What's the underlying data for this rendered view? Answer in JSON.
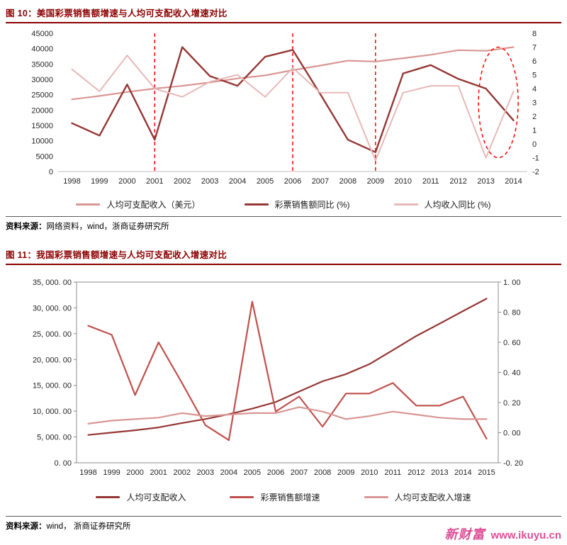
{
  "fig10": {
    "title": "图 10：美国彩票销售额增速与人均可支配收入增速对比",
    "source_label": "资料来源：",
    "source": "网络资料，wind，浙商证券研究所"
  },
  "fig11": {
    "title": "图 11：我国彩票销售额增速与人均可支配收入增速对比",
    "source_label": "资料来源：",
    "source": "wind， 浙商证券研究所"
  },
  "footer": {
    "brand": "新财富",
    "url": "www.ikuyu.cn"
  },
  "colors": {
    "title_red": "#8B0000",
    "annotation_red": "#FF0000",
    "series_dark_red": "#953735",
    "series_red": "#C0504D",
    "series_rose": "#D99694",
    "series_light_pink": "#E6B9B8",
    "brand_pink": "#DD4E96"
  },
  "chart_data": [
    {
      "type": "line",
      "title": "美国彩票销售额增速与人均可支配收入增速对比",
      "x": [
        1998,
        1999,
        2000,
        2001,
        2002,
        2003,
        2004,
        2005,
        2006,
        2007,
        2008,
        2009,
        2010,
        2011,
        2012,
        2013,
        2014
      ],
      "left_axis": {
        "min": 0,
        "max": 45000,
        "step": 5000,
        "ticks": [
          "0",
          "5000",
          "10000",
          "15000",
          "20000",
          "25000",
          "30000",
          "35000",
          "40000",
          "45000"
        ]
      },
      "right_axis": {
        "min": -2,
        "max": 8,
        "step": 1,
        "ticks": [
          "-2",
          "-1",
          "0",
          "1",
          "2",
          "3",
          "4",
          "5",
          "6",
          "7",
          "8"
        ]
      },
      "legend_position": "bottom",
      "grid": false,
      "series": [
        {
          "id": "income-usd",
          "name": "人均可支配收入（美元）",
          "axis": "left",
          "color": "#D99694",
          "width": 2.2,
          "values": [
            23500,
            24600,
            25900,
            27000,
            27900,
            29000,
            30300,
            31300,
            33000,
            34500,
            36100,
            35800,
            36900,
            38000,
            39500,
            39300,
            40500
          ]
        },
        {
          "id": "lottery-yoy",
          "name": "彩票销售额同比 (%)",
          "axis": "right",
          "color": "#953735",
          "width": 2.4,
          "values": [
            1.5,
            0.6,
            4.3,
            0.3,
            7.0,
            4.9,
            4.2,
            6.3,
            6.8,
            3.6,
            0.3,
            -0.6,
            5.1,
            5.7,
            4.7,
            4.0,
            1.7
          ]
        },
        {
          "id": "income-yoy",
          "name": "人均收入同比 (%)",
          "axis": "right",
          "color": "#E6B9B8",
          "width": 2,
          "values": [
            5.4,
            3.8,
            6.4,
            4.0,
            3.4,
            4.5,
            5.0,
            3.4,
            5.5,
            3.7,
            3.7,
            -1.2,
            3.7,
            4.2,
            4.2,
            -1.0,
            3.8
          ]
        }
      ],
      "annotations": {
        "color": "#FF0000",
        "vlines": [
          2001,
          2006,
          2009
        ],
        "ellipse": {
          "cx_year": 2013.45,
          "cy_left": 22500,
          "rx_years": 0.72,
          "ry_left": 18000
        }
      }
    },
    {
      "type": "line",
      "title": "我国彩票销售额增速与人均可支配收入增速对比",
      "x": [
        1998,
        1999,
        2000,
        2001,
        2002,
        2003,
        2004,
        2005,
        2006,
        2007,
        2008,
        2009,
        2010,
        2011,
        2012,
        2013,
        2014,
        2015
      ],
      "left_axis": {
        "min": 0,
        "max": 35000,
        "step": 5000,
        "ticks": [
          "0. 00",
          "5, 000. 00",
          "10, 000. 00",
          "15, 000. 00",
          "20, 000. 00",
          "25, 000. 00",
          "30, 000. 00",
          "35, 000. 00"
        ]
      },
      "right_axis": {
        "min": -0.2,
        "max": 1.0,
        "step": 0.2,
        "ticks": [
          "-0. 20",
          "0. 00",
          "0. 20",
          "0. 40",
          "0. 60",
          "0. 80",
          "1. 00"
        ]
      },
      "legend_position": "bottom",
      "grid": false,
      "series": [
        {
          "id": "income",
          "name": "人均可支配收入",
          "axis": "left",
          "color": "#953735",
          "width": 2.2,
          "values": [
            5400,
            5850,
            6300,
            6850,
            7700,
            8470,
            9420,
            10490,
            11760,
            13790,
            15780,
            17170,
            19100,
            21810,
            24560,
            26960,
            29380,
            31790
          ]
        },
        {
          "id": "sales-growth",
          "name": "彩票销售额增速",
          "axis": "right",
          "color": "#C0504D",
          "width": 2.2,
          "values": [
            0.71,
            0.65,
            0.25,
            0.6,
            0.33,
            0.05,
            -0.05,
            0.87,
            0.14,
            0.24,
            0.04,
            0.26,
            0.26,
            0.33,
            0.18,
            0.18,
            0.24,
            -0.04
          ]
        },
        {
          "id": "income-growth",
          "name": "人均可支配收入增速",
          "axis": "right",
          "color": "#D99694",
          "width": 2.2,
          "values": [
            0.06,
            0.08,
            0.09,
            0.1,
            0.13,
            0.11,
            0.12,
            0.13,
            0.13,
            0.17,
            0.14,
            0.09,
            0.11,
            0.14,
            0.12,
            0.1,
            0.09,
            0.09
          ]
        }
      ]
    }
  ]
}
